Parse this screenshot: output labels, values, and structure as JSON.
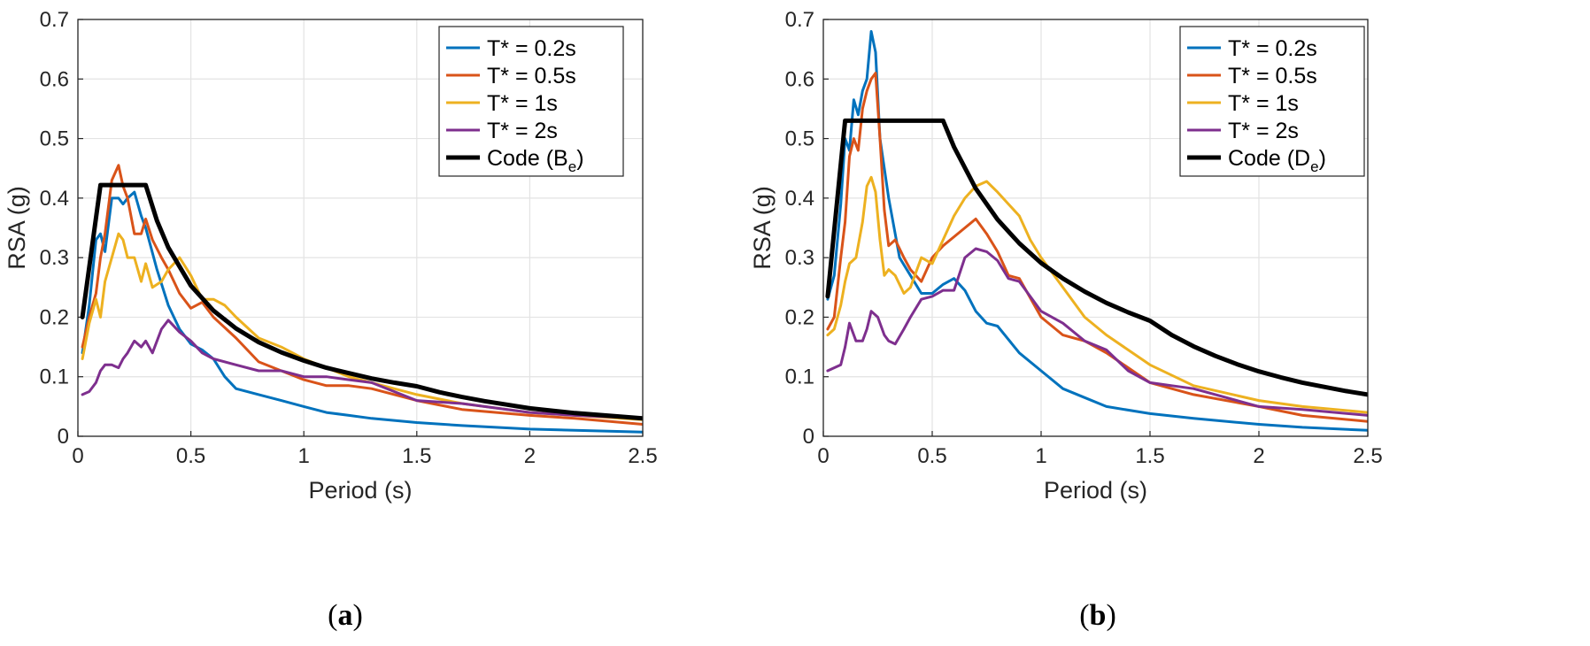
{
  "chart_data": [
    {
      "type": "line",
      "panel_label": "a",
      "xlabel": "Period (s)",
      "ylabel": "RSA (g)",
      "xlim": [
        0,
        2.5
      ],
      "ylim": [
        0,
        0.7
      ],
      "xticks": [
        "0",
        "0.5",
        "1",
        "1.5",
        "2",
        "2.5"
      ],
      "yticks": [
        "0",
        "0.1",
        "0.2",
        "0.3",
        "0.4",
        "0.5",
        "0.6",
        "0.7"
      ],
      "grid": true,
      "legend_position": "top-right",
      "series": [
        {
          "name": "T* = 0.2s",
          "color": "#0072BD",
          "x": [
            0.02,
            0.05,
            0.08,
            0.1,
            0.12,
            0.15,
            0.18,
            0.2,
            0.22,
            0.25,
            0.28,
            0.3,
            0.35,
            0.4,
            0.45,
            0.5,
            0.55,
            0.6,
            0.65,
            0.7,
            0.8,
            0.9,
            1.0,
            1.1,
            1.2,
            1.3,
            1.5,
            1.7,
            2.0,
            2.2,
            2.5
          ],
          "y": [
            0.14,
            0.22,
            0.33,
            0.34,
            0.31,
            0.4,
            0.4,
            0.39,
            0.4,
            0.41,
            0.37,
            0.35,
            0.28,
            0.22,
            0.18,
            0.155,
            0.145,
            0.13,
            0.1,
            0.08,
            0.07,
            0.06,
            0.05,
            0.04,
            0.035,
            0.03,
            0.023,
            0.018,
            0.012,
            0.01,
            0.007
          ]
        },
        {
          "name": "T* = 0.5s",
          "color": "#D95319",
          "x": [
            0.02,
            0.05,
            0.08,
            0.1,
            0.12,
            0.15,
            0.18,
            0.2,
            0.22,
            0.25,
            0.28,
            0.3,
            0.33,
            0.37,
            0.4,
            0.45,
            0.5,
            0.55,
            0.6,
            0.7,
            0.8,
            0.9,
            1.0,
            1.1,
            1.2,
            1.3,
            1.5,
            1.7,
            2.0,
            2.2,
            2.5
          ],
          "y": [
            0.15,
            0.2,
            0.24,
            0.3,
            0.34,
            0.43,
            0.455,
            0.42,
            0.4,
            0.34,
            0.34,
            0.365,
            0.33,
            0.3,
            0.28,
            0.24,
            0.215,
            0.225,
            0.2,
            0.165,
            0.125,
            0.11,
            0.095,
            0.085,
            0.085,
            0.08,
            0.06,
            0.045,
            0.035,
            0.03,
            0.02
          ]
        },
        {
          "name": "T* = 1s",
          "color": "#EDB120",
          "x": [
            0.02,
            0.05,
            0.08,
            0.1,
            0.12,
            0.15,
            0.18,
            0.2,
            0.22,
            0.25,
            0.28,
            0.3,
            0.33,
            0.37,
            0.4,
            0.45,
            0.5,
            0.55,
            0.6,
            0.65,
            0.7,
            0.8,
            0.9,
            1.0,
            1.1,
            1.2,
            1.3,
            1.5,
            1.7,
            2.0,
            2.2,
            2.5
          ],
          "y": [
            0.13,
            0.19,
            0.23,
            0.2,
            0.26,
            0.3,
            0.34,
            0.33,
            0.3,
            0.3,
            0.26,
            0.29,
            0.25,
            0.26,
            0.28,
            0.3,
            0.27,
            0.23,
            0.23,
            0.22,
            0.2,
            0.165,
            0.15,
            0.13,
            0.115,
            0.1,
            0.09,
            0.07,
            0.055,
            0.04,
            0.035,
            0.028
          ]
        },
        {
          "name": "T* = 2s",
          "color": "#7E2F8E",
          "x": [
            0.02,
            0.05,
            0.08,
            0.1,
            0.12,
            0.15,
            0.18,
            0.2,
            0.22,
            0.25,
            0.28,
            0.3,
            0.33,
            0.37,
            0.4,
            0.45,
            0.5,
            0.55,
            0.6,
            0.7,
            0.8,
            0.9,
            1.0,
            1.1,
            1.2,
            1.3,
            1.5,
            1.7,
            2.0,
            2.2,
            2.5
          ],
          "y": [
            0.07,
            0.075,
            0.09,
            0.11,
            0.12,
            0.12,
            0.115,
            0.13,
            0.14,
            0.16,
            0.15,
            0.16,
            0.14,
            0.18,
            0.195,
            0.175,
            0.16,
            0.14,
            0.13,
            0.12,
            0.11,
            0.11,
            0.1,
            0.1,
            0.095,
            0.09,
            0.06,
            0.055,
            0.04,
            0.035,
            0.03
          ]
        },
        {
          "name": "Code (Be)",
          "legend_base": "Code (B",
          "legend_sub": "e",
          "legend_close": ")",
          "color": "#000000",
          "width": "thick",
          "x": [
            0.02,
            0.1,
            0.15,
            0.2,
            0.25,
            0.3,
            0.35,
            0.4,
            0.5,
            0.6,
            0.7,
            0.8,
            0.9,
            1.0,
            1.1,
            1.2,
            1.3,
            1.4,
            1.5,
            1.6,
            1.7,
            1.8,
            1.9,
            2.0,
            2.1,
            2.2,
            2.3,
            2.4,
            2.5
          ],
          "y": [
            0.2,
            0.422,
            0.422,
            0.422,
            0.422,
            0.422,
            0.362,
            0.317,
            0.253,
            0.211,
            0.181,
            0.158,
            0.141,
            0.127,
            0.115,
            0.106,
            0.097,
            0.09,
            0.084,
            0.074,
            0.066,
            0.059,
            0.053,
            0.047,
            0.043,
            0.039,
            0.036,
            0.033,
            0.03
          ]
        }
      ]
    },
    {
      "type": "line",
      "panel_label": "b",
      "xlabel": "Period (s)",
      "ylabel": "RSA (g)",
      "xlim": [
        0,
        2.5
      ],
      "ylim": [
        0,
        0.7
      ],
      "xticks": [
        "0",
        "0.5",
        "1",
        "1.5",
        "2",
        "2.5"
      ],
      "yticks": [
        "0",
        "0.1",
        "0.2",
        "0.3",
        "0.4",
        "0.5",
        "0.6",
        "0.7"
      ],
      "grid": true,
      "legend_position": "top-right",
      "series": [
        {
          "name": "T* = 0.2s",
          "color": "#0072BD",
          "x": [
            0.02,
            0.05,
            0.08,
            0.1,
            0.12,
            0.14,
            0.16,
            0.18,
            0.2,
            0.22,
            0.24,
            0.26,
            0.28,
            0.3,
            0.35,
            0.4,
            0.45,
            0.5,
            0.55,
            0.6,
            0.65,
            0.7,
            0.75,
            0.8,
            0.9,
            1.0,
            1.1,
            1.2,
            1.3,
            1.5,
            1.7,
            2.0,
            2.2,
            2.5
          ],
          "y": [
            0.23,
            0.27,
            0.39,
            0.5,
            0.48,
            0.565,
            0.54,
            0.58,
            0.6,
            0.68,
            0.645,
            0.5,
            0.45,
            0.4,
            0.3,
            0.27,
            0.24,
            0.24,
            0.255,
            0.265,
            0.245,
            0.21,
            0.19,
            0.185,
            0.14,
            0.11,
            0.08,
            0.065,
            0.05,
            0.038,
            0.03,
            0.02,
            0.015,
            0.01
          ]
        },
        {
          "name": "T* = 0.5s",
          "color": "#D95319",
          "x": [
            0.02,
            0.05,
            0.08,
            0.1,
            0.12,
            0.14,
            0.16,
            0.18,
            0.2,
            0.22,
            0.24,
            0.26,
            0.28,
            0.3,
            0.33,
            0.37,
            0.4,
            0.45,
            0.5,
            0.55,
            0.6,
            0.65,
            0.7,
            0.75,
            0.8,
            0.85,
            0.9,
            1.0,
            1.1,
            1.2,
            1.3,
            1.5,
            1.7,
            2.0,
            2.2,
            2.5
          ],
          "y": [
            0.18,
            0.2,
            0.3,
            0.36,
            0.47,
            0.5,
            0.48,
            0.55,
            0.58,
            0.6,
            0.61,
            0.5,
            0.38,
            0.32,
            0.33,
            0.3,
            0.28,
            0.26,
            0.3,
            0.32,
            0.335,
            0.35,
            0.365,
            0.34,
            0.31,
            0.27,
            0.265,
            0.2,
            0.17,
            0.16,
            0.14,
            0.09,
            0.07,
            0.05,
            0.035,
            0.025
          ]
        },
        {
          "name": "T* = 1s",
          "color": "#EDB120",
          "x": [
            0.02,
            0.05,
            0.08,
            0.1,
            0.12,
            0.15,
            0.18,
            0.2,
            0.22,
            0.24,
            0.26,
            0.28,
            0.3,
            0.33,
            0.37,
            0.4,
            0.45,
            0.5,
            0.55,
            0.6,
            0.65,
            0.7,
            0.75,
            0.8,
            0.85,
            0.9,
            0.95,
            1.0,
            1.1,
            1.2,
            1.3,
            1.5,
            1.7,
            2.0,
            2.2,
            2.5
          ],
          "y": [
            0.17,
            0.18,
            0.22,
            0.26,
            0.29,
            0.3,
            0.36,
            0.42,
            0.435,
            0.41,
            0.33,
            0.27,
            0.28,
            0.27,
            0.24,
            0.25,
            0.3,
            0.29,
            0.33,
            0.37,
            0.4,
            0.42,
            0.428,
            0.41,
            0.39,
            0.37,
            0.33,
            0.3,
            0.25,
            0.2,
            0.17,
            0.12,
            0.085,
            0.06,
            0.05,
            0.04
          ]
        },
        {
          "name": "T* = 2s",
          "color": "#7E2F8E",
          "x": [
            0.02,
            0.05,
            0.08,
            0.1,
            0.12,
            0.15,
            0.18,
            0.2,
            0.22,
            0.25,
            0.28,
            0.3,
            0.33,
            0.37,
            0.4,
            0.45,
            0.5,
            0.55,
            0.6,
            0.65,
            0.7,
            0.75,
            0.8,
            0.85,
            0.9,
            1.0,
            1.1,
            1.2,
            1.3,
            1.4,
            1.5,
            1.6,
            1.7,
            2.0,
            2.2,
            2.5
          ],
          "y": [
            0.11,
            0.115,
            0.12,
            0.15,
            0.19,
            0.16,
            0.16,
            0.18,
            0.21,
            0.2,
            0.17,
            0.16,
            0.155,
            0.18,
            0.2,
            0.23,
            0.235,
            0.245,
            0.245,
            0.3,
            0.315,
            0.31,
            0.295,
            0.265,
            0.26,
            0.21,
            0.19,
            0.16,
            0.145,
            0.11,
            0.09,
            0.085,
            0.08,
            0.05,
            0.045,
            0.035
          ]
        },
        {
          "name": "Code (De)",
          "legend_base": "Code (D",
          "legend_sub": "e",
          "legend_close": ")",
          "color": "#000000",
          "width": "thick",
          "x": [
            0.02,
            0.1,
            0.2,
            0.3,
            0.4,
            0.5,
            0.55,
            0.6,
            0.7,
            0.8,
            0.9,
            1.0,
            1.1,
            1.2,
            1.3,
            1.4,
            1.5,
            1.6,
            1.7,
            1.8,
            1.9,
            2.0,
            2.1,
            2.2,
            2.3,
            2.4,
            2.5
          ],
          "y": [
            0.235,
            0.53,
            0.53,
            0.53,
            0.53,
            0.53,
            0.53,
            0.486,
            0.416,
            0.364,
            0.324,
            0.291,
            0.265,
            0.243,
            0.224,
            0.208,
            0.194,
            0.17,
            0.151,
            0.135,
            0.121,
            0.109,
            0.099,
            0.09,
            0.083,
            0.076,
            0.07
          ]
        }
      ]
    }
  ]
}
